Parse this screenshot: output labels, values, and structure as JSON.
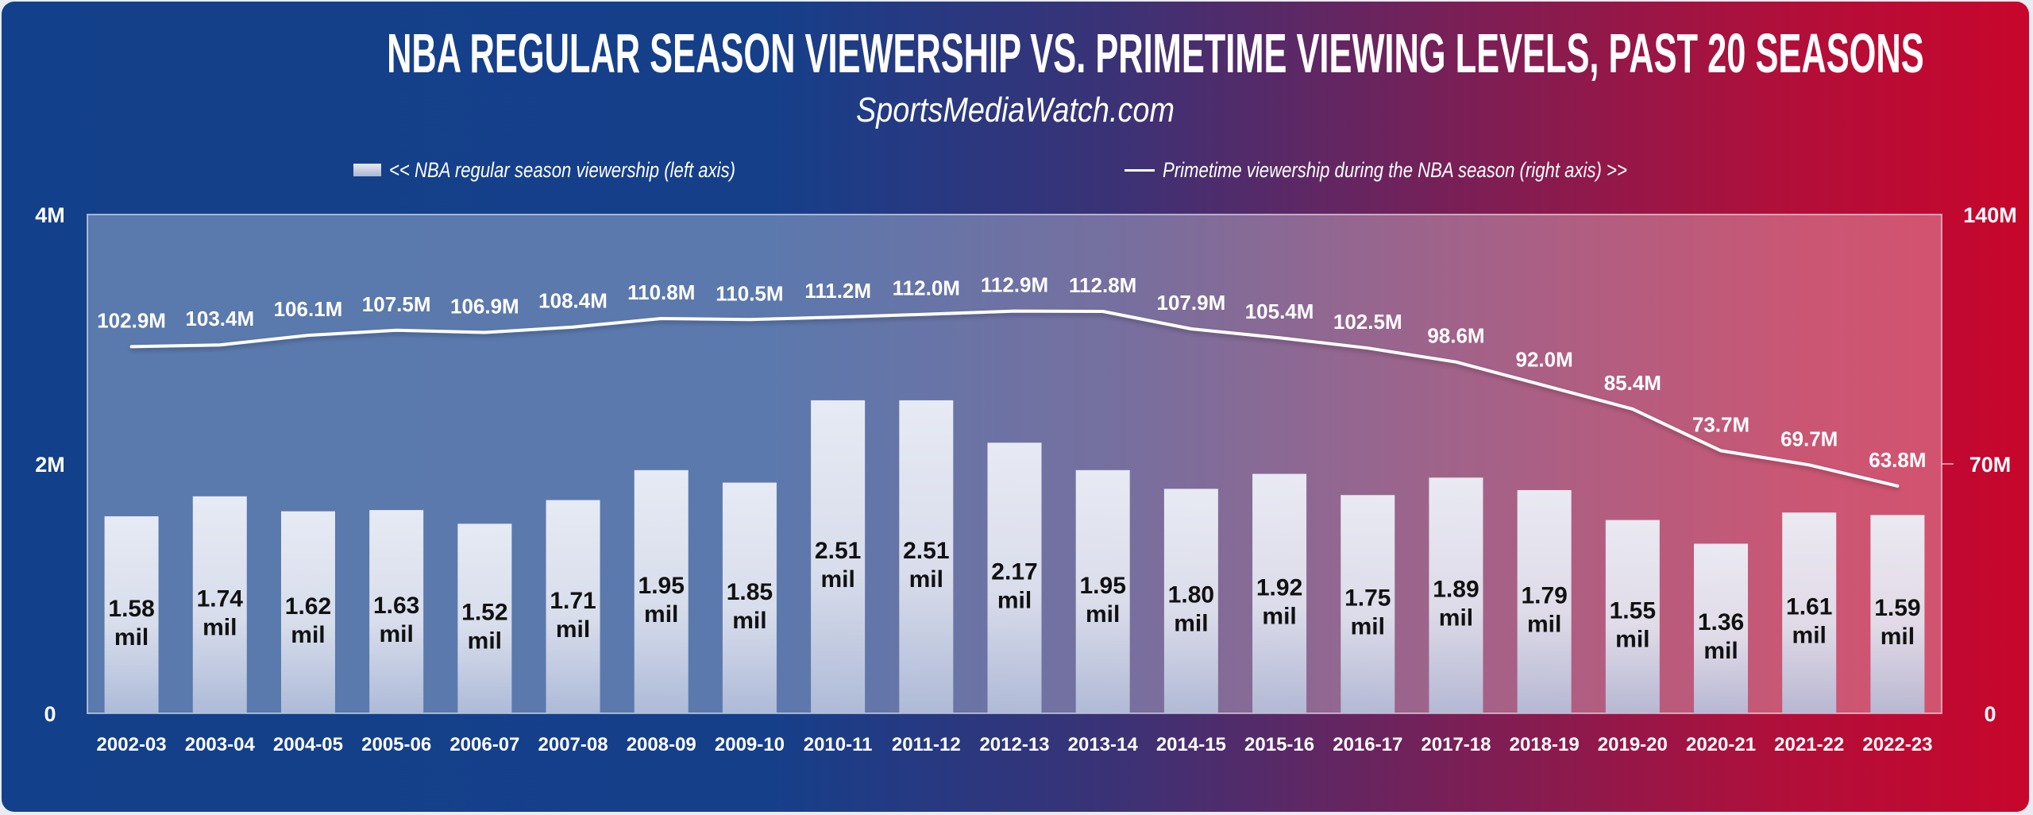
{
  "colors": {
    "bg_left": "#13408a",
    "bg_right": "#c8062c",
    "bar_top": "#eceff7",
    "bar_bottom": "#b4c0da",
    "line": "#ffffff",
    "text": "#ffffff",
    "bar_label": "#111111"
  },
  "chart_data": {
    "type": "bar+line",
    "title": "NBA REGULAR SEASON VIEWERSHIP VS. PRIMETIME VIEWING LEVELS, PAST 20 SEASONS",
    "subtitle": "SportsMediaWatch.com",
    "legend": {
      "placement": "top",
      "bar_label": "<< NBA regular season viewership (left axis)",
      "line_label": "Primetime viewership during the NBA season (right axis) >>"
    },
    "categories": [
      "2002-03",
      "2003-04",
      "2004-05",
      "2005-06",
      "2006-07",
      "2007-08",
      "2008-09",
      "2009-10",
      "2010-11",
      "2011-12",
      "2012-13",
      "2013-14",
      "2014-15",
      "2015-16",
      "2016-17",
      "2017-18",
      "2018-19",
      "2019-20",
      "2020-21",
      "2021-22",
      "2022-23"
    ],
    "series": [
      {
        "name": "NBA regular season viewership",
        "type": "bar",
        "axis": "left",
        "unit": "mil",
        "values": [
          1.58,
          1.74,
          1.62,
          1.63,
          1.52,
          1.71,
          1.95,
          1.85,
          2.51,
          2.51,
          2.17,
          1.95,
          1.8,
          1.92,
          1.75,
          1.89,
          1.79,
          1.55,
          1.36,
          1.61,
          1.59
        ],
        "labels": [
          "1.58",
          "1.74",
          "1.62",
          "1.63",
          "1.52",
          "1.71",
          "1.95",
          "1.85",
          "2.51",
          "2.51",
          "2.17",
          "1.95",
          "1.80",
          "1.92",
          "1.75",
          "1.89",
          "1.79",
          "1.55",
          "1.36",
          "1.61",
          "1.59"
        ]
      },
      {
        "name": "Primetime viewership during the NBA season",
        "type": "line",
        "axis": "right",
        "values": [
          102.9,
          103.4,
          106.1,
          107.5,
          106.9,
          108.4,
          110.8,
          110.5,
          111.2,
          112.0,
          112.9,
          112.8,
          107.9,
          105.4,
          102.5,
          98.6,
          92.0,
          85.4,
          73.7,
          69.7,
          63.8
        ],
        "labels": [
          "102.9M",
          "103.4M",
          "106.1M",
          "107.5M",
          "106.9M",
          "108.4M",
          "110.8M",
          "110.5M",
          "111.2M",
          "112.0M",
          "112.9M",
          "112.8M",
          "107.9M",
          "105.4M",
          "102.5M",
          "98.6M",
          "92.0M",
          "85.4M",
          "73.7M",
          "69.7M",
          "63.8M"
        ]
      }
    ],
    "left_axis": {
      "range": [
        0,
        4
      ],
      "ticks": [
        0,
        2,
        4
      ],
      "tick_labels": [
        "0",
        "2M",
        "4M"
      ]
    },
    "right_axis": {
      "range": [
        0,
        140
      ],
      "ticks": [
        0,
        70,
        140
      ],
      "tick_labels": [
        "0",
        "70M",
        "140M"
      ]
    },
    "grid": false
  }
}
